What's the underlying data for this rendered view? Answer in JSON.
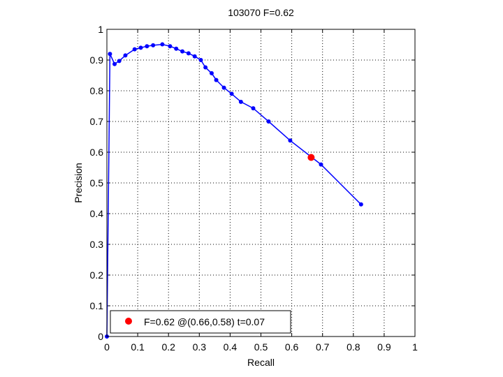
{
  "chart_data": {
    "type": "line",
    "title": "103070 F=0.62",
    "xlabel": "Recall",
    "ylabel": "Precision",
    "xlim": [
      0,
      1
    ],
    "ylim": [
      0,
      1
    ],
    "xticks": [
      0,
      0.1,
      0.2,
      0.3,
      0.4,
      0.5,
      0.6,
      0.7,
      0.8,
      0.9,
      1
    ],
    "yticks": [
      0,
      0.1,
      0.2,
      0.3,
      0.4,
      0.5,
      0.6,
      0.7,
      0.8,
      0.9,
      1
    ],
    "xtick_labels": [
      "0",
      "0.1",
      "0.2",
      "0.3",
      "0.4",
      "0.5",
      "0.6",
      "0.7",
      "0.8",
      "0.9",
      "1"
    ],
    "ytick_labels": [
      "0",
      "0.1",
      "0.2",
      "0.3",
      "0.4",
      "0.5",
      "0.6",
      "0.7",
      "0.8",
      "0.9",
      "1"
    ],
    "grid": true,
    "grid_style": "dotted",
    "line_color": "#0000ff",
    "marker_color": "#0000ff",
    "highlight_color": "#ff0000",
    "series": [
      {
        "points": [
          [
            0,
            0
          ],
          [
            0.01,
            0.92
          ],
          [
            0.025,
            0.887
          ],
          [
            0.04,
            0.897
          ],
          [
            0.06,
            0.915
          ],
          [
            0.09,
            0.935
          ],
          [
            0.11,
            0.94
          ],
          [
            0.13,
            0.945
          ],
          [
            0.15,
            0.948
          ],
          [
            0.18,
            0.951
          ],
          [
            0.205,
            0.945
          ],
          [
            0.225,
            0.937
          ],
          [
            0.245,
            0.928
          ],
          [
            0.265,
            0.922
          ],
          [
            0.285,
            0.912
          ],
          [
            0.305,
            0.9
          ],
          [
            0.32,
            0.876
          ],
          [
            0.34,
            0.857
          ],
          [
            0.355,
            0.835
          ],
          [
            0.38,
            0.81
          ],
          [
            0.405,
            0.79
          ],
          [
            0.435,
            0.764
          ],
          [
            0.475,
            0.743
          ],
          [
            0.525,
            0.7
          ],
          [
            0.595,
            0.638
          ],
          [
            0.695,
            0.56
          ],
          [
            0.825,
            0.43
          ]
        ]
      }
    ],
    "highlight_point": {
      "x": 0.663,
      "y": 0.583
    },
    "legend": {
      "label": "F=0.62 @(0.66,0.58) t=0.07",
      "position": "bottom-left"
    }
  }
}
